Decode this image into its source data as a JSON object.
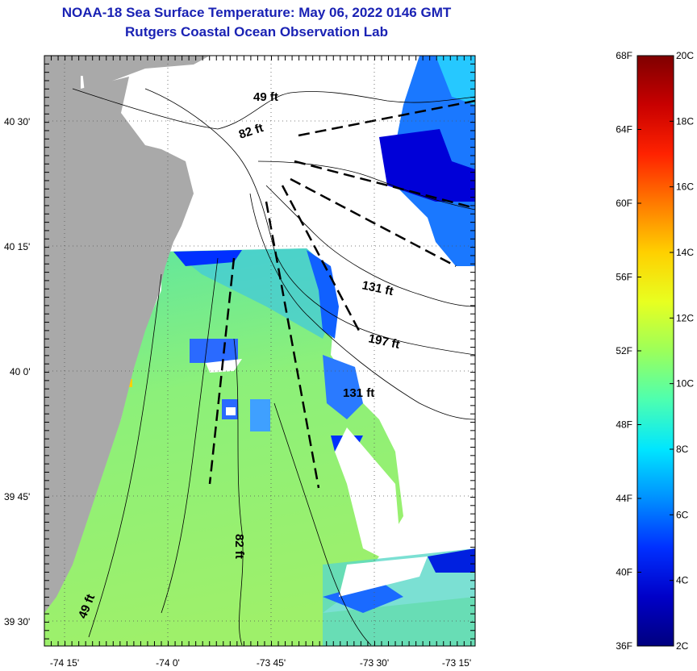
{
  "title": {
    "line1": "NOAA-18 Sea Surface Temperature:  May 06, 2022 0146 GMT",
    "line2": "Rutgers Coastal Ocean Observation Lab"
  },
  "axes": {
    "y_ticks": [
      "40 30'",
      "40 15'",
      "40 0'",
      "39 45'",
      "39 30'"
    ],
    "x_ticks": [
      "-74 15'",
      "-74 0'",
      "-73 45'",
      "-73 30'",
      "-73 15'"
    ]
  },
  "isobaths": [
    "49 ft",
    "82 ft",
    "131 ft",
    "197 ft",
    "131 ft",
    "82 ft",
    "49 ft"
  ],
  "colorbar": {
    "fahrenheit": [
      "68F",
      "64F",
      "60F",
      "56F",
      "52F",
      "48F",
      "44F",
      "40F",
      "36F"
    ],
    "celsius": [
      "20C",
      "18C",
      "16C",
      "14C",
      "12C",
      "10C",
      "8C",
      "6C",
      "4C",
      "2C"
    ],
    "colors": [
      "#7f0000",
      "#c80000",
      "#ff2200",
      "#ff7a00",
      "#ffd000",
      "#e8ff20",
      "#9cff5a",
      "#4dffb0",
      "#00e6ff",
      "#0090ff",
      "#0030ff",
      "#0000c8",
      "#00007f"
    ]
  },
  "colors": {
    "land": "#a9a9a9",
    "cloud": "#ffffff",
    "title": "#1a22b4"
  }
}
